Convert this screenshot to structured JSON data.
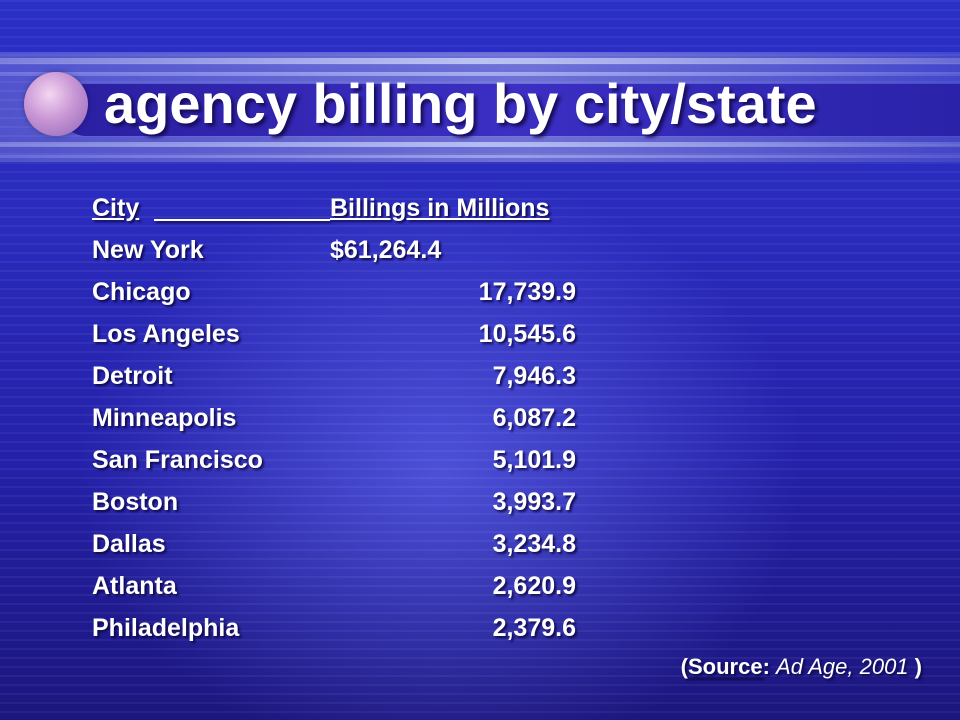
{
  "slide": {
    "title": "agency billing by city/state",
    "table": {
      "header_city": "City",
      "header_billings": "Billings in Millions",
      "rows": [
        {
          "city": "New York",
          "billings": "$61,264.4"
        },
        {
          "city": "Chicago",
          "billings": "17,739.9"
        },
        {
          "city": "Los Angeles",
          "billings": "10,545.6"
        },
        {
          "city": "Detroit",
          "billings": "7,946.3"
        },
        {
          "city": "Minneapolis",
          "billings": "6,087.2"
        },
        {
          "city": "San Francisco",
          "billings": "5,101.9"
        },
        {
          "city": "Boston",
          "billings": "3,993.7"
        },
        {
          "city": "Dallas",
          "billings": "3,234.8"
        },
        {
          "city": "Atlanta",
          "billings": "2,620.9"
        },
        {
          "city": "Philadelphia",
          "billings": "2,379.6"
        }
      ]
    },
    "source": {
      "open_paren": "(",
      "label": "Source",
      "colon": ": ",
      "reference": "Ad Age, 2001",
      "close_paren": " )"
    }
  }
}
